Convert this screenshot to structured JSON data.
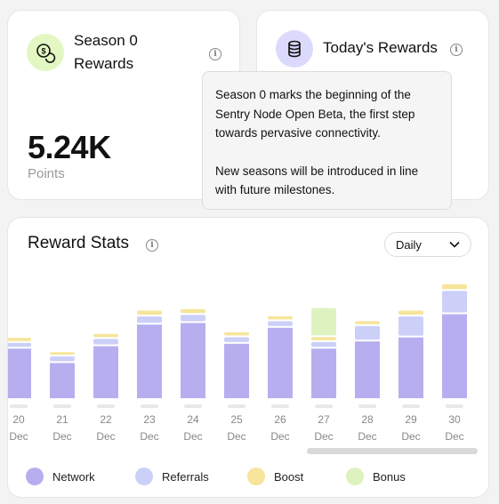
{
  "season_card": {
    "title": "Season 0 Rewards",
    "icon": "dollar-coin-icon",
    "value": "5.24K",
    "unit": "Points"
  },
  "today_card": {
    "title": "Today's Rewards",
    "icon": "database-stack-icon"
  },
  "tooltip": {
    "paragraph1": "Season 0 marks the beginning of the Sentry Node Open Beta, the first step towards pervasive connectivity.",
    "paragraph2": "New seasons will be introduced in line with future milestones."
  },
  "stats": {
    "title": "Reward Stats",
    "period": "Daily"
  },
  "colors": {
    "network": "#b7aef0",
    "referrals": "#ccd0f8",
    "boost": "#f6e59a",
    "bonus": "#def2c0",
    "placeholder": "#e8e8e8"
  },
  "chart_data": {
    "type": "bar",
    "stacked": true,
    "categories": [
      "20 Dec",
      "21 Dec",
      "22 Dec",
      "23 Dec",
      "24 Dec",
      "25 Dec",
      "26 Dec",
      "27 Dec",
      "28 Dec",
      "29 Dec",
      "30 Dec"
    ],
    "day_labels": [
      "20",
      "21",
      "22",
      "23",
      "24",
      "25",
      "26",
      "27",
      "28",
      "29",
      "30"
    ],
    "month_label": "Dec",
    "series": [
      {
        "name": "Network",
        "color_key": "network",
        "values": [
          62,
          44,
          65,
          92,
          94,
          68,
          88,
          62,
          71,
          76,
          105
        ]
      },
      {
        "name": "Referrals",
        "color_key": "referrals",
        "values": [
          5,
          6,
          7,
          8,
          8,
          6,
          6,
          6,
          17,
          24,
          27
        ]
      },
      {
        "name": "Boost",
        "color_key": "boost",
        "values": [
          4,
          3,
          4,
          5,
          5,
          4,
          4,
          4,
          4,
          5,
          6
        ]
      },
      {
        "name": "Bonus",
        "color_key": "bonus",
        "values": [
          0,
          0,
          0,
          0,
          0,
          0,
          0,
          34,
          0,
          0,
          0
        ]
      }
    ],
    "legend": [
      "Network",
      "Referrals",
      "Boost",
      "Bonus"
    ],
    "legend_position": "bottom",
    "grid": false
  }
}
